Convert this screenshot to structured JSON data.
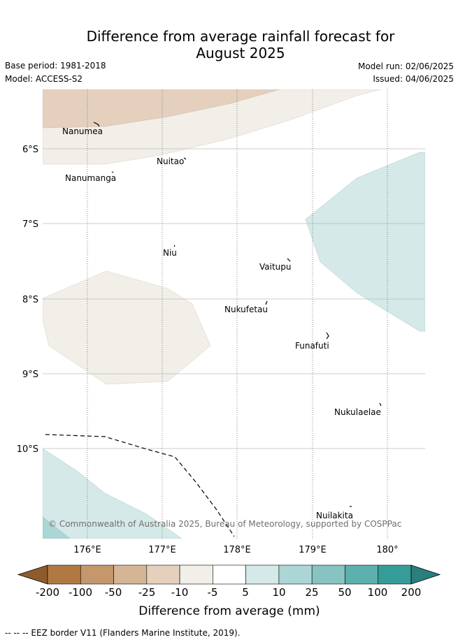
{
  "header": {
    "title_line1": "Difference from average rainfall forecast for",
    "title_line2": "August 2025",
    "base_period": "Base period: 1981-2018",
    "model": "Model: ACCESS-S2",
    "model_run": "Model run: 02/06/2025",
    "issued": "Issued: 04/06/2025"
  },
  "map": {
    "lat_labels": [
      "6°S",
      "7°S",
      "8°S",
      "9°S",
      "10°S"
    ],
    "lon_labels": [
      "176°E",
      "177°E",
      "178°E",
      "179°E",
      "180°"
    ],
    "places": [
      "Nanumea",
      "Nuitao",
      "Nanumanga",
      "Niu",
      "Vaitupu",
      "Nukufetau",
      "Funafuti",
      "Nukulaelae",
      "Nuilakita"
    ],
    "copyright": "© Commonwealth of Australia 2025, Bureau of Meteorology, supported by COSPPac"
  },
  "colorbar": {
    "ticks": [
      "-200",
      "-100",
      "-50",
      "-25",
      "-10",
      "-5",
      "5",
      "10",
      "25",
      "50",
      "100",
      "200"
    ],
    "colors": [
      "#8f5b2e",
      "#b07942",
      "#c4976c",
      "#d4b595",
      "#e4d0bd",
      "#f2eee8",
      "#ffffff",
      "#d4e9e8",
      "#acd6d5",
      "#86c3c1",
      "#5cb0ad",
      "#369c99",
      "#2a7e7c"
    ],
    "label": "Difference from average (mm)"
  },
  "footer": {
    "legend": "-- -- -- EEZ border V11 (Flanders Marine Institute, 2019)."
  }
}
